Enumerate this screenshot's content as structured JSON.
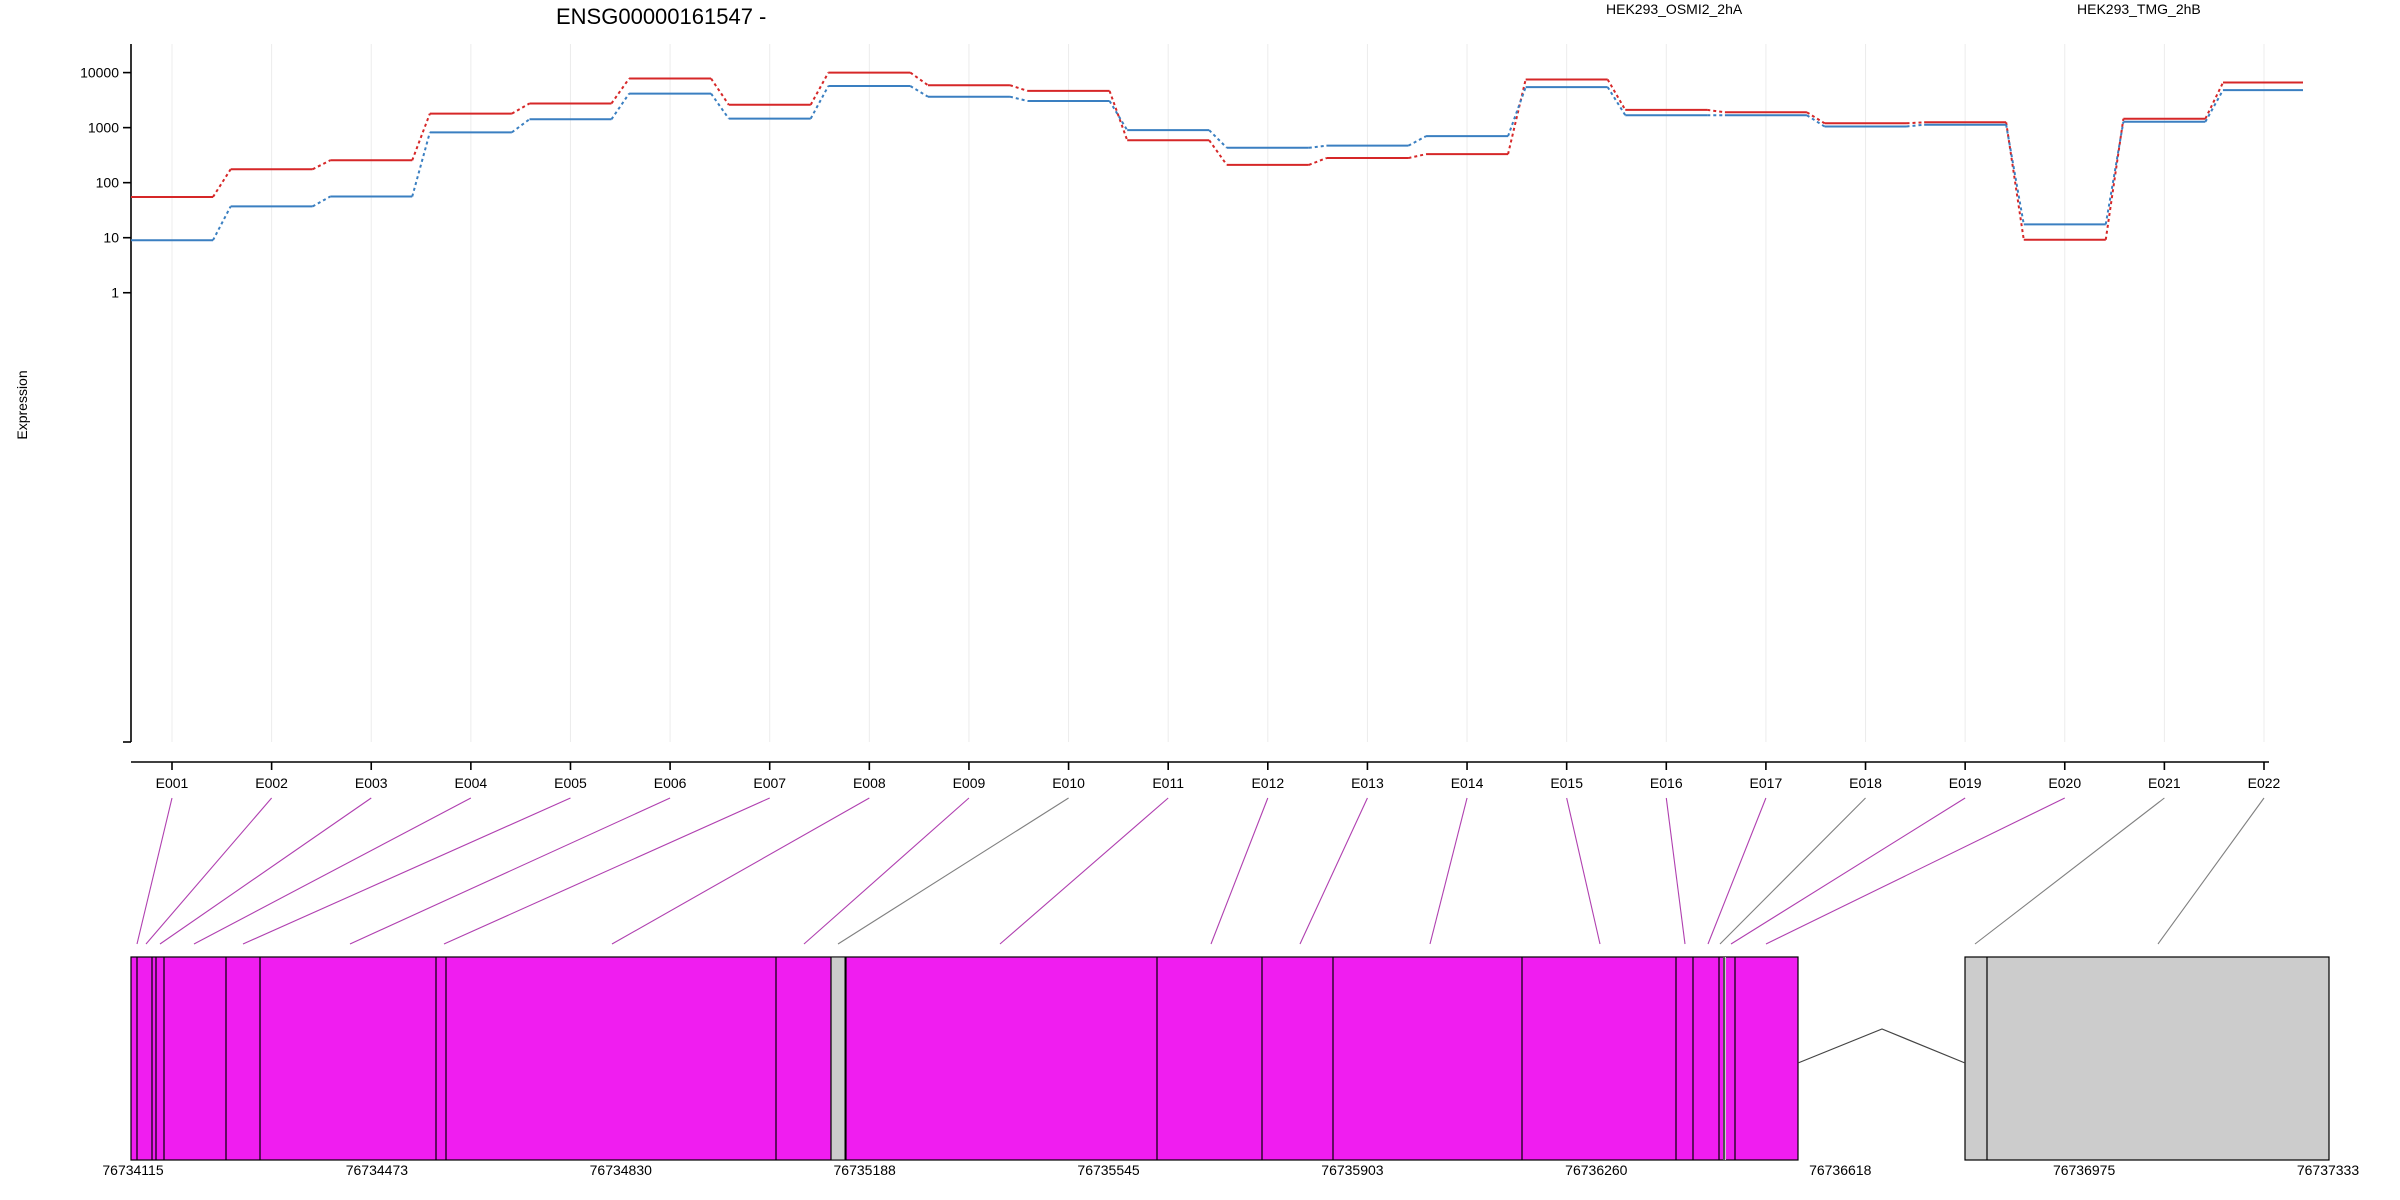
{
  "chart_data": {
    "type": "line",
    "title": "ENSG00000161547 -",
    "ylabel": "Expression",
    "yscale": "log",
    "ylim": [
      0.4,
      14000
    ],
    "yticks": [
      1,
      10,
      100,
      1000,
      10000
    ],
    "categories": [
      "E001",
      "E002",
      "E003",
      "E004",
      "E005",
      "E006",
      "E007",
      "E008",
      "E009",
      "E010",
      "E011",
      "E012",
      "E013",
      "E014",
      "E015",
      "E016",
      "E017",
      "E018",
      "E019",
      "E020",
      "E021",
      "E022"
    ],
    "series": [
      {
        "name": "HEK293_OSMI2_2hA",
        "color": "#d62728",
        "values": [
          55,
          175,
          255,
          1800,
          2750,
          7800,
          2600,
          10000,
          5900,
          4650,
          590,
          210,
          280,
          330,
          7500,
          2100,
          1900,
          1200,
          1250,
          9.2,
          1450,
          6600
        ]
      },
      {
        "name": "HEK293_TMG_2hB",
        "color": "#3a7fc1",
        "values": [
          9,
          37,
          56,
          820,
          1420,
          4150,
          1460,
          5700,
          3650,
          3050,
          900,
          430,
          470,
          700,
          5450,
          1680,
          1680,
          1050,
          1130,
          17.5,
          1280,
          4800
        ]
      }
    ],
    "exon_colors": [
      "#f01df0",
      "#f01df0",
      "#f01df0",
      "#f01df0",
      "#f01df0",
      "#f01df0",
      "#f01df0",
      "#f01df0",
      "#f01df0",
      "#f01df0",
      "#f01df0",
      "#f01df0",
      "#f01df0",
      "#f01df0",
      "#f01df0",
      "#f01df0",
      "#f01df0",
      "#f01df0",
      "#f01df0",
      "#f01df0",
      "#cccccc",
      "#cccccc"
    ],
    "connector_colors": [
      "#b040b0",
      "#b040b0",
      "#b040b0",
      "#b040b0",
      "#b040b0",
      "#b040b0",
      "#b040b0",
      "#b040b0",
      "#b040b0",
      "#808080",
      "#b040b0",
      "#b040b0",
      "#b040b0",
      "#b040b0",
      "#b040b0",
      "#b040b0",
      "#b040b0",
      "#808080",
      "#b040b0",
      "#b040b0",
      "#808080",
      "#808080"
    ],
    "gene_model": {
      "coordinate_labels": [
        "76734115",
        "76734473",
        "76734830",
        "76735188",
        "76735545",
        "76735903",
        "76736260",
        "76736618",
        "76736975",
        "76737333"
      ],
      "feature_color": "#f01df0",
      "noncoding_color": "#cccccc"
    }
  }
}
